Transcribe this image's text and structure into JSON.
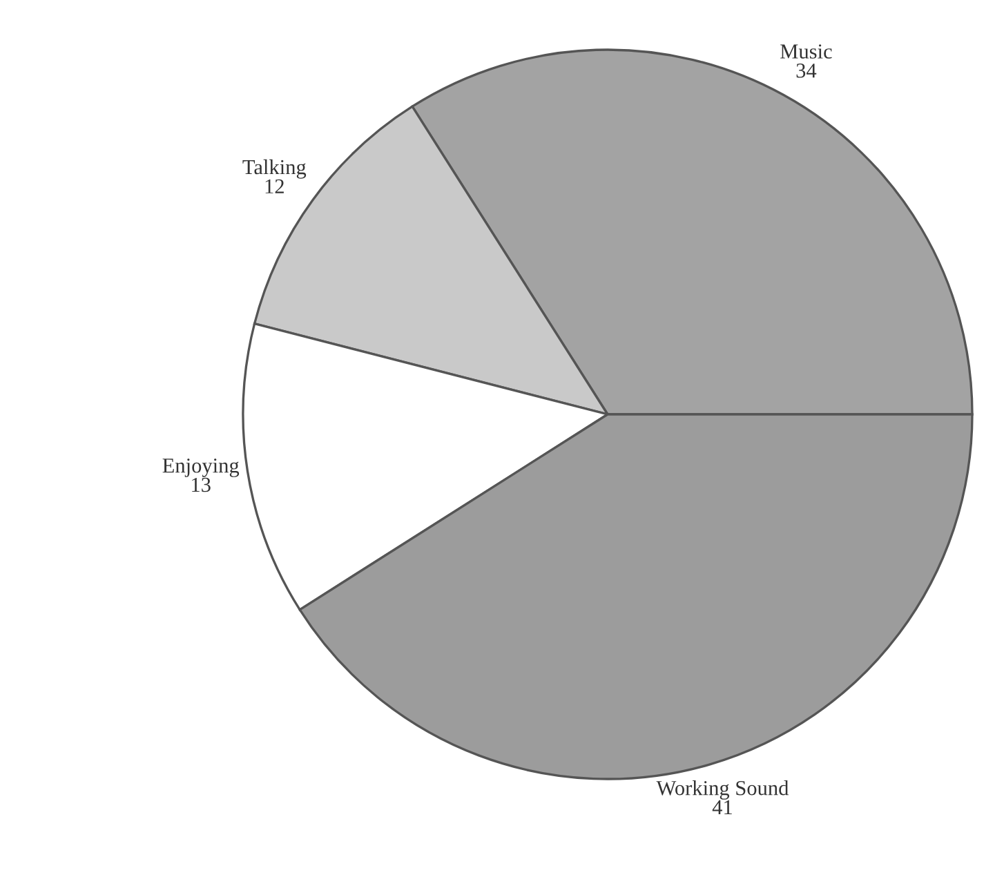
{
  "chart_data": {
    "type": "pie",
    "categories": [
      "Music",
      "Talking",
      "Enjoying",
      "Working Sound"
    ],
    "values": [
      34,
      12,
      13,
      41
    ],
    "colors": [
      "#a3a3a3",
      "#c9c9c9",
      "#ffffff",
      "#9c9c9c"
    ],
    "data_labels": true
  }
}
